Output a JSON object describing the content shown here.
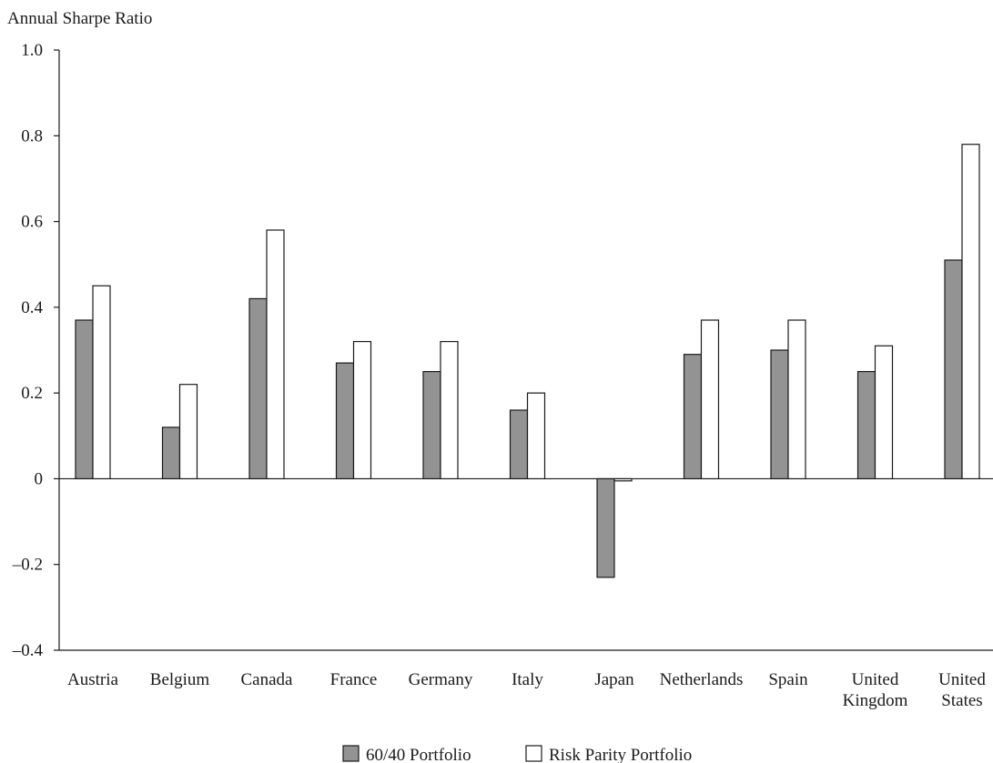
{
  "chart_data": {
    "type": "bar",
    "ylabel": "Annual Sharpe Ratio",
    "ylim": [
      -0.4,
      1.0
    ],
    "yticks": [
      {
        "value": -0.4,
        "label": "–0.4"
      },
      {
        "value": -0.2,
        "label": "–0.2"
      },
      {
        "value": 0,
        "label": "0"
      },
      {
        "value": 0.2,
        "label": "0.2"
      },
      {
        "value": 0.4,
        "label": "0.4"
      },
      {
        "value": 0.6,
        "label": "0.6"
      },
      {
        "value": 0.8,
        "label": "0.8"
      },
      {
        "value": 1.0,
        "label": "1.0"
      }
    ],
    "categories": [
      [
        "Austria"
      ],
      [
        "Belgium"
      ],
      [
        "Canada"
      ],
      [
        "France"
      ],
      [
        "Germany"
      ],
      [
        "Italy"
      ],
      [
        "Japan"
      ],
      [
        "Netherlands"
      ],
      [
        "Spain"
      ],
      [
        "United",
        "Kingdom"
      ],
      [
        "United",
        "States"
      ]
    ],
    "series": [
      {
        "name": "60/40 Portfolio",
        "color": "#939393",
        "values": [
          0.37,
          0.12,
          0.42,
          0.27,
          0.25,
          0.16,
          -0.23,
          0.29,
          0.3,
          0.25,
          0.51
        ]
      },
      {
        "name": "Risk Parity Portfolio",
        "color": "#ffffff",
        "values": [
          0.45,
          0.22,
          0.58,
          0.32,
          0.32,
          0.2,
          -0.005,
          0.37,
          0.37,
          0.31,
          0.78
        ]
      }
    ],
    "grid": false,
    "legend_position": "bottom-center"
  }
}
